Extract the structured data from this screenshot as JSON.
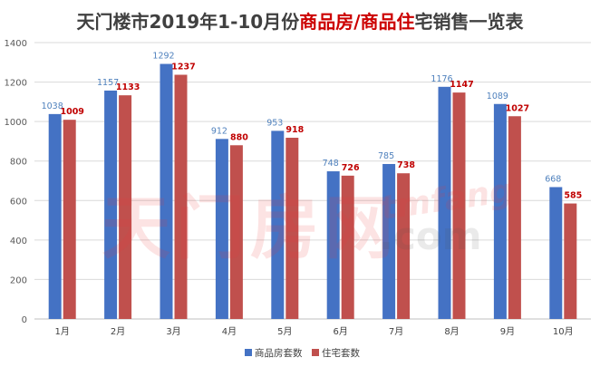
{
  "chart_data": {
    "type": "bar",
    "title_parts": [
      "天门楼市2019年1-10月份",
      "商品房/商品住",
      "宅销售一览表"
    ],
    "categories": [
      "1月",
      "2月",
      "3月",
      "4月",
      "5月",
      "6月",
      "7月",
      "8月",
      "9月",
      "10月"
    ],
    "series": [
      {
        "name": "商品房套数",
        "color": "#4472c4",
        "label_color": "#4f81bd",
        "values": [
          1038,
          1157,
          1292,
          912,
          953,
          748,
          785,
          1176,
          1089,
          668
        ]
      },
      {
        "name": "住宅套数",
        "color": "#c0504d",
        "label_color": "#c00000",
        "values": [
          1009,
          1133,
          1237,
          880,
          918,
          726,
          738,
          1147,
          1027,
          585
        ]
      }
    ],
    "ylim": [
      0,
      1400
    ],
    "yticks": [
      0,
      200,
      400,
      600,
      800,
      1000,
      1200,
      1400
    ],
    "grid": true,
    "legend_position": "bottom",
    "xlabel": "",
    "ylabel": ""
  },
  "watermark": {
    "cn": "天门房网",
    "en1": "tmfang",
    "en2": ".com"
  }
}
